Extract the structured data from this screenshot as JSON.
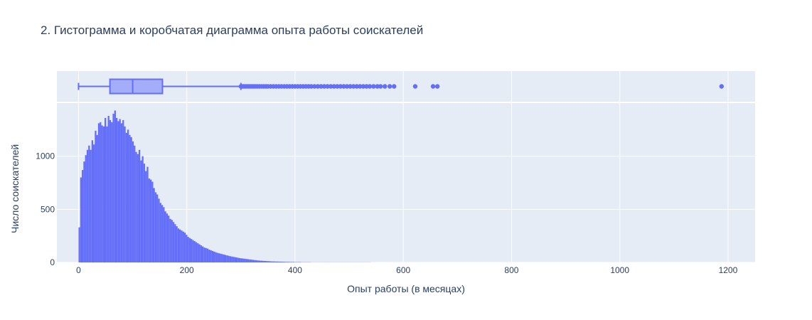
{
  "chart_data": {
    "type": "histogram+box",
    "title": "2. Гистограмма и коробчатая диаграмма опыта работы соискателей",
    "xlabel": "Опыт работы (в месяцах)",
    "ylabel": "Число соискателей",
    "xlim": [
      -40,
      1250
    ],
    "ylim": [
      0,
      1500
    ],
    "xticks": [
      0,
      200,
      400,
      600,
      800,
      1000,
      1200
    ],
    "yticks": [
      0,
      500,
      1000
    ],
    "grid": true,
    "colors": {
      "bar": "#636efa",
      "box_fill": "rgba(99,110,250,0.5)",
      "plot_bg": "#e5ecf6",
      "grid": "#ffffff",
      "text": "#2a3f5f"
    },
    "histogram": {
      "bin_width": 3,
      "start": 0,
      "counts": [
        330,
        800,
        870,
        950,
        1010,
        1060,
        1100,
        1060,
        1150,
        1110,
        1240,
        1200,
        1310,
        1320,
        1290,
        1280,
        1360,
        1280,
        1380,
        1340,
        1320,
        1400,
        1430,
        1360,
        1330,
        1350,
        1310,
        1340,
        1280,
        1220,
        1250,
        1200,
        1180,
        1140,
        1100,
        1040,
        1020,
        1060,
        960,
        1000,
        930,
        860,
        900,
        790,
        780,
        760,
        700,
        660,
        640,
        600,
        560,
        540,
        520,
        480,
        460,
        440,
        410,
        400,
        380,
        360,
        340,
        320,
        310,
        300,
        290,
        280,
        260,
        240,
        230,
        220,
        210,
        200,
        190,
        180,
        170,
        160,
        150,
        140,
        135,
        130,
        120,
        115,
        108,
        102,
        96,
        90,
        86,
        82,
        78,
        74,
        70,
        66,
        62,
        58,
        55,
        52,
        49,
        46,
        43,
        40,
        38,
        36,
        34,
        32,
        30,
        28,
        26,
        24,
        22,
        20,
        18,
        17,
        16,
        15,
        14,
        13,
        12,
        11,
        10,
        9,
        9,
        8,
        8,
        7,
        7,
        6,
        6,
        5,
        5,
        5,
        4,
        4,
        4,
        3,
        3,
        3,
        3,
        2,
        2,
        2,
        2,
        2,
        2,
        1,
        1,
        1,
        1,
        1,
        1,
        1,
        1,
        1,
        1,
        1,
        1,
        1,
        1,
        1,
        1,
        1,
        1,
        1,
        1,
        1,
        1,
        1,
        1,
        1,
        1,
        1,
        1,
        1,
        1,
        1,
        1,
        1,
        1,
        1,
        1,
        1
      ]
    },
    "box": {
      "min": 0,
      "q1": 58,
      "median": 100,
      "q3": 155,
      "upper_fence": 300,
      "outliers": [
        300,
        302,
        305,
        308,
        311,
        314,
        317,
        320,
        323,
        326,
        330,
        334,
        338,
        342,
        346,
        350,
        355,
        360,
        365,
        370,
        375,
        380,
        385,
        390,
        395,
        400,
        405,
        410,
        415,
        420,
        425,
        430,
        436,
        442,
        448,
        454,
        460,
        466,
        472,
        478,
        484,
        490,
        496,
        502,
        508,
        514,
        520,
        526,
        532,
        538,
        545,
        552,
        558,
        566,
        575,
        583,
        622,
        655,
        663,
        1188
      ]
    }
  }
}
